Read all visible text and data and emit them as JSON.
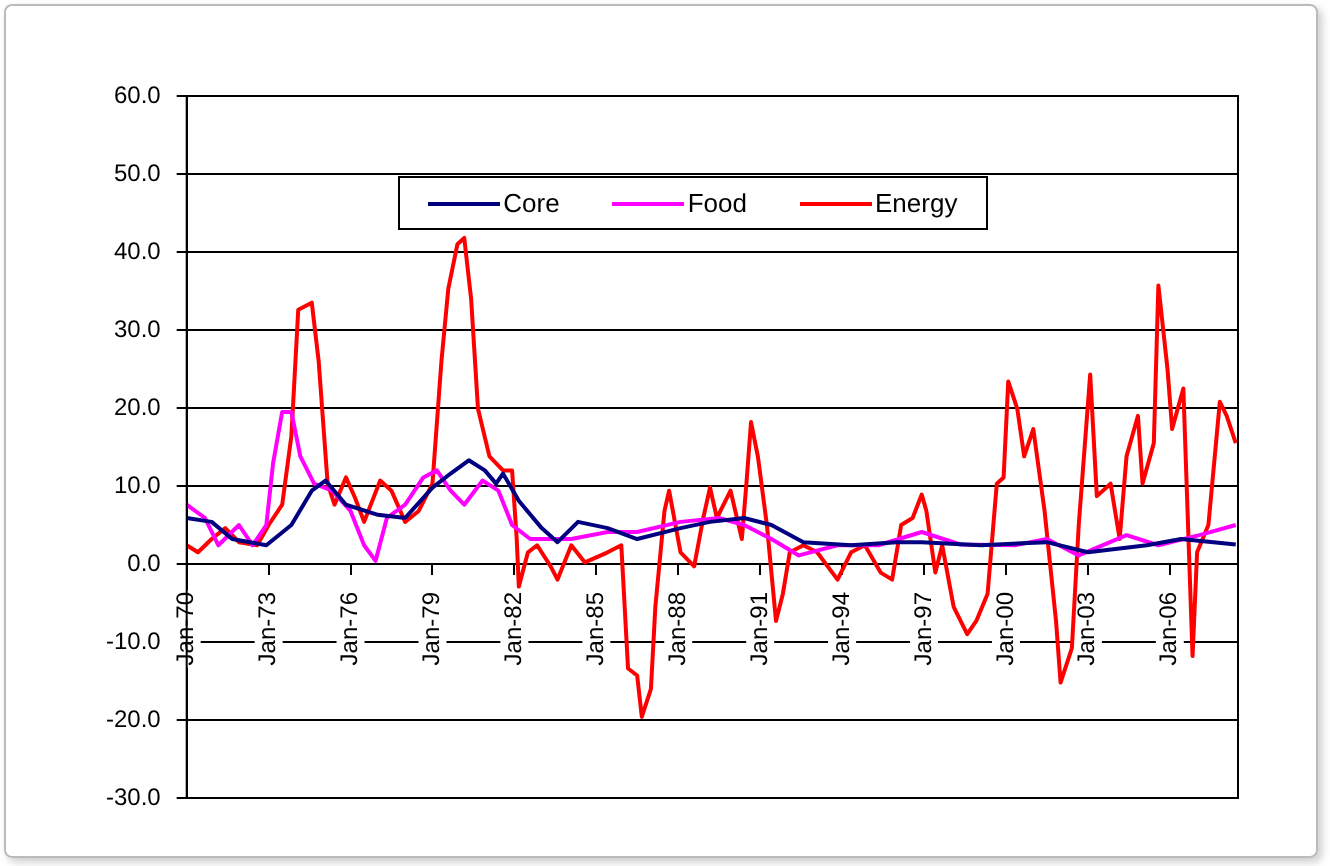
{
  "chart_data": {
    "type": "line",
    "xlim": [
      "1970-01",
      "2008-07"
    ],
    "xticks": [
      {
        "value": "1970-01",
        "label": "Jan-70"
      },
      {
        "value": "1973-01",
        "label": "Jan-73"
      },
      {
        "value": "1976-01",
        "label": "Jan-76"
      },
      {
        "value": "1979-01",
        "label": "Jan-79"
      },
      {
        "value": "1982-01",
        "label": "Jan-82"
      },
      {
        "value": "1985-01",
        "label": "Jan-85"
      },
      {
        "value": "1988-01",
        "label": "Jan-88"
      },
      {
        "value": "1991-01",
        "label": "Jan-91"
      },
      {
        "value": "1994-01",
        "label": "Jan-94"
      },
      {
        "value": "1997-01",
        "label": "Jan-97"
      },
      {
        "value": "2000-01",
        "label": "Jan-00"
      },
      {
        "value": "2003-01",
        "label": "Jan-03"
      },
      {
        "value": "2006-01",
        "label": "Jan-06"
      }
    ],
    "ylim": [
      -30,
      60
    ],
    "yticks": [
      {
        "value": -30,
        "label": "-30.0"
      },
      {
        "value": -20,
        "label": "-20.0"
      },
      {
        "value": -10,
        "label": "-10.0"
      },
      {
        "value": 0,
        "label": "0.0"
      },
      {
        "value": 10,
        "label": "10.0"
      },
      {
        "value": 20,
        "label": "20.0"
      },
      {
        "value": 30,
        "label": "30.0"
      },
      {
        "value": 40,
        "label": "40.0"
      },
      {
        "value": 50,
        "label": "50.0"
      },
      {
        "value": 60,
        "label": "60.0"
      }
    ],
    "grid": "y",
    "legend": "top",
    "marker": "none",
    "line_style": "solid",
    "series": [
      {
        "name": "Core",
        "color": "#000080",
        "x": [
          "1970-01",
          "1970-12",
          "1971-09",
          "1972-12",
          "1973-11",
          "1974-08",
          "1975-02",
          "1975-11",
          "1977-01",
          "1978-01",
          "1979-01",
          "1979-09",
          "1980-05",
          "1980-12",
          "1981-05",
          "1981-08",
          "1982-03",
          "1983-01",
          "1983-08",
          "1984-05",
          "1985-06",
          "1986-07",
          "1988-02",
          "1989-03",
          "1990-06",
          "1991-06",
          "1992-08",
          "1994-05",
          "1996-01",
          "1996-12",
          "1999-02",
          "2001-07",
          "2003-01",
          "2005-03",
          "2006-06",
          "2008-06"
        ],
        "values": [
          5.9,
          5.4,
          3.2,
          2.4,
          5.0,
          9.4,
          10.7,
          7.6,
          6.3,
          5.9,
          9.8,
          11.6,
          13.3,
          12.0,
          10.3,
          11.6,
          8.1,
          4.6,
          2.8,
          5.4,
          4.6,
          3.2,
          4.6,
          5.4,
          5.9,
          5.0,
          2.8,
          2.4,
          2.8,
          2.8,
          2.4,
          2.8,
          1.5,
          2.4,
          3.2,
          2.5
        ]
      },
      {
        "name": "Food",
        "color": "#ff00ff",
        "x": [
          "1970-01",
          "1970-09",
          "1971-03",
          "1971-12",
          "1972-06",
          "1972-12",
          "1973-03",
          "1973-07",
          "1973-11",
          "1974-03",
          "1974-09",
          "1975-05",
          "1976-01",
          "1976-07",
          "1976-12",
          "1977-05",
          "1978-01",
          "1978-09",
          "1979-03",
          "1979-09",
          "1980-03",
          "1980-11",
          "1981-06",
          "1981-12",
          "1982-08",
          "1984-02",
          "1985-06",
          "1986-07",
          "1988-02",
          "1989-07",
          "1990-06",
          "1991-06",
          "1992-06",
          "1993-11",
          "1995-05",
          "1996-12",
          "1998-05",
          "2000-05",
          "2001-07",
          "2002-09",
          "2004-06",
          "2005-08",
          "2007-02",
          "2008-06"
        ],
        "values": [
          7.6,
          5.9,
          2.4,
          5.0,
          2.4,
          5.0,
          12.9,
          19.5,
          19.5,
          13.8,
          10.3,
          9.4,
          6.8,
          2.4,
          0.4,
          5.9,
          7.6,
          11.1,
          12.0,
          9.4,
          7.6,
          10.7,
          9.4,
          5.0,
          3.2,
          3.2,
          4.1,
          4.1,
          5.4,
          5.9,
          5.0,
          3.2,
          1.1,
          2.4,
          2.4,
          4.1,
          2.5,
          2.4,
          3.2,
          1.1,
          3.7,
          2.4,
          3.7,
          5.0
        ]
      },
      {
        "name": "Energy",
        "color": "#ff0000",
        "x": [
          "1970-01",
          "1970-06",
          "1970-12",
          "1971-06",
          "1971-12",
          "1972-08",
          "1973-01",
          "1973-07",
          "1973-11",
          "1974-02",
          "1974-08",
          "1974-11",
          "1975-03",
          "1975-06",
          "1975-11",
          "1976-03",
          "1976-07",
          "1977-02",
          "1977-07",
          "1978-01",
          "1978-07",
          "1979-01",
          "1979-05",
          "1979-08",
          "1979-12",
          "1980-03",
          "1980-06",
          "1980-09",
          "1981-02",
          "1981-08",
          "1981-12",
          "1982-02",
          "1982-03",
          "1982-07",
          "1982-11",
          "1983-05",
          "1983-08",
          "1984-02",
          "1984-08",
          "1985-06",
          "1985-12",
          "1986-03",
          "1986-07",
          "1986-09",
          "1987-01",
          "1987-03",
          "1987-07",
          "1987-09",
          "1988-02",
          "1988-08",
          "1988-12",
          "1989-03",
          "1989-06",
          "1989-12",
          "1990-05",
          "1990-07",
          "1990-09",
          "1990-12",
          "1991-04",
          "1991-08",
          "1991-11",
          "1992-02",
          "1992-08",
          "1993-02",
          "1993-11",
          "1994-05",
          "1994-11",
          "1995-06",
          "1995-11",
          "1996-03",
          "1996-08",
          "1996-12",
          "1997-02",
          "1997-06",
          "1997-09",
          "1998-02",
          "1998-08",
          "1998-12",
          "1999-05",
          "1999-09",
          "1999-12",
          "2000-02",
          "2000-06",
          "2000-09",
          "2001-01",
          "2001-06",
          "2001-11",
          "2002-01",
          "2002-06",
          "2002-09",
          "2003-02",
          "2003-05",
          "2003-11",
          "2004-03",
          "2004-06",
          "2004-11",
          "2005-01",
          "2005-06",
          "2005-08",
          "2005-12",
          "2006-02",
          "2006-07",
          "2006-11",
          "2007-01",
          "2007-06",
          "2007-11",
          "2008-02",
          "2008-06"
        ],
        "values": [
          2.4,
          1.5,
          3.2,
          4.6,
          2.8,
          2.4,
          5.0,
          7.6,
          16.4,
          32.6,
          33.5,
          26,
          10.3,
          7.6,
          11.1,
          8.5,
          5.4,
          10.7,
          9.4,
          5.4,
          6.8,
          10.3,
          26,
          35.3,
          41,
          41.8,
          34,
          19.9,
          13.8,
          12.0,
          12.0,
          3.2,
          -2.9,
          1.5,
          2.4,
          -0.3,
          -2.0,
          2.4,
          0.2,
          1.5,
          2.4,
          -13.4,
          -14.3,
          -19.6,
          -16,
          -5.5,
          6.8,
          9.4,
          1.5,
          -0.3,
          5.9,
          9.8,
          5.9,
          9.4,
          3.2,
          10.3,
          18.2,
          13.8,
          5.0,
          -7.3,
          -3.8,
          1.5,
          2.4,
          1.5,
          -2.0,
          1.5,
          2.4,
          -1.1,
          -2.0,
          5.0,
          5.9,
          8.9,
          6.8,
          -1.1,
          2.4,
          -5.5,
          -9.0,
          -7.3,
          -3.8,
          10.3,
          11.1,
          23.4,
          19.9,
          13.8,
          17.3,
          6.8,
          -7.3,
          -15.2,
          -10.8,
          5.0,
          24.3,
          8.7,
          10.3,
          3.2,
          13.8,
          19,
          10.3,
          15.5,
          35.7,
          25,
          17.3,
          22.5,
          -11.8,
          1.5,
          5.0,
          20.8,
          19,
          15.5
        ]
      }
    ]
  }
}
